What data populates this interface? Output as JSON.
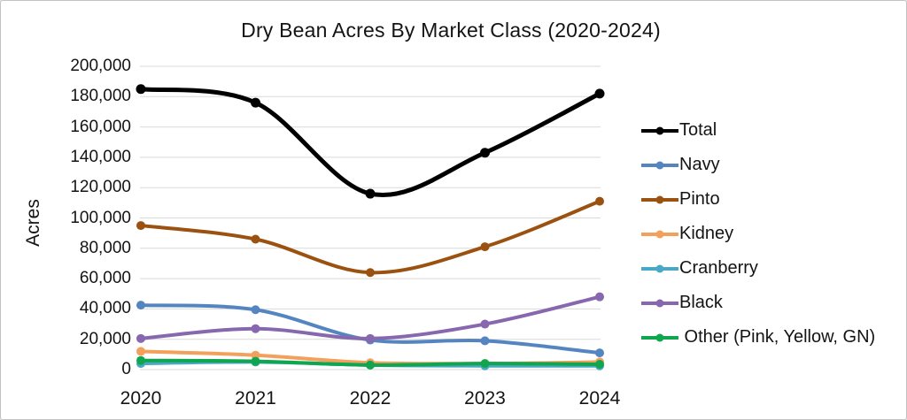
{
  "chart_data": {
    "type": "line",
    "title": "Dry Bean Acres By Market Class (2020-2024)",
    "xlabel": "",
    "ylabel": "Acres",
    "categories": [
      "2020",
      "2021",
      "2022",
      "2023",
      "2024"
    ],
    "ylim": [
      0,
      200000
    ],
    "ytick_interval": 20000,
    "grid": true,
    "legend_position": "right",
    "line_style": "smooth",
    "gridline_color": "#d9d9d9",
    "series": [
      {
        "name": "Total",
        "color": "#000000",
        "values": [
          185000,
          176000,
          116000,
          143000,
          182000
        ]
      },
      {
        "name": "Navy",
        "color": "#5585c1",
        "values": [
          42500,
          39500,
          19500,
          19000,
          11000
        ]
      },
      {
        "name": "Pinto",
        "color": "#9b5110",
        "values": [
          95000,
          86000,
          64000,
          81000,
          111000
        ]
      },
      {
        "name": "Kidney",
        "color": "#f2a05b",
        "values": [
          12000,
          9500,
          4500,
          4000,
          5000
        ]
      },
      {
        "name": "Cranberry",
        "color": "#49a9c4",
        "values": [
          4000,
          5000,
          3000,
          2500,
          2500
        ]
      },
      {
        "name": "Black",
        "color": "#8767ae",
        "values": [
          20500,
          27000,
          20500,
          30000,
          48000
        ]
      },
      {
        "name": " Other (Pink, Yellow, GN)",
        "color": "#10a64f",
        "values": [
          6000,
          5500,
          3000,
          4000,
          3500
        ]
      }
    ]
  }
}
